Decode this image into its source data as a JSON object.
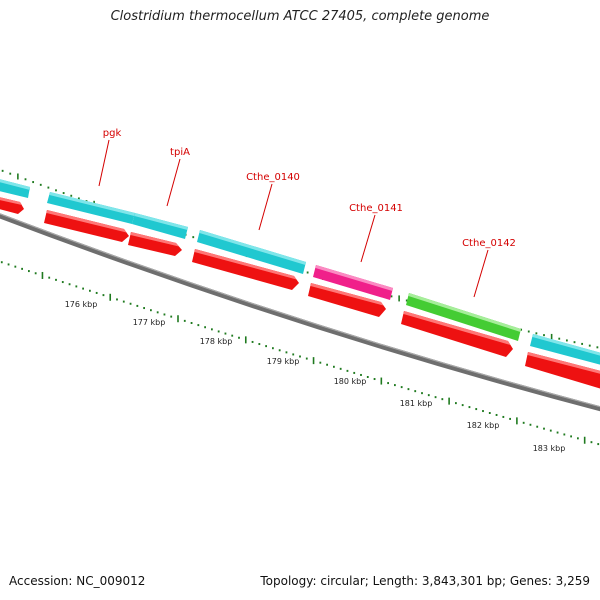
{
  "title": "Clostridium thermocellum ATCC 27405, complete genome",
  "footer": {
    "accession": "Accession: NC_009012",
    "summary": "Topology: circular; Length: 3,843,301 bp; Genes: 3,259"
  },
  "colors": {
    "cds_feature": "#20c8d0",
    "gene_feature": "#ee1111",
    "highlight_pink": "#f0208a",
    "highlight_green": "#44cc33",
    "backbone": "#808080",
    "tick": "#1f7a1f",
    "label": "#d40000"
  },
  "gene_labels": [
    "pgk",
    "tpiA",
    "Cthe_0140",
    "Cthe_0141",
    "Cthe_0142"
  ],
  "scale_labels": [
    "176 kbp",
    "177 kbp",
    "178 kbp",
    "179 kbp",
    "180 kbp",
    "181 kbp",
    "182 kbp",
    "183 kbp"
  ]
}
